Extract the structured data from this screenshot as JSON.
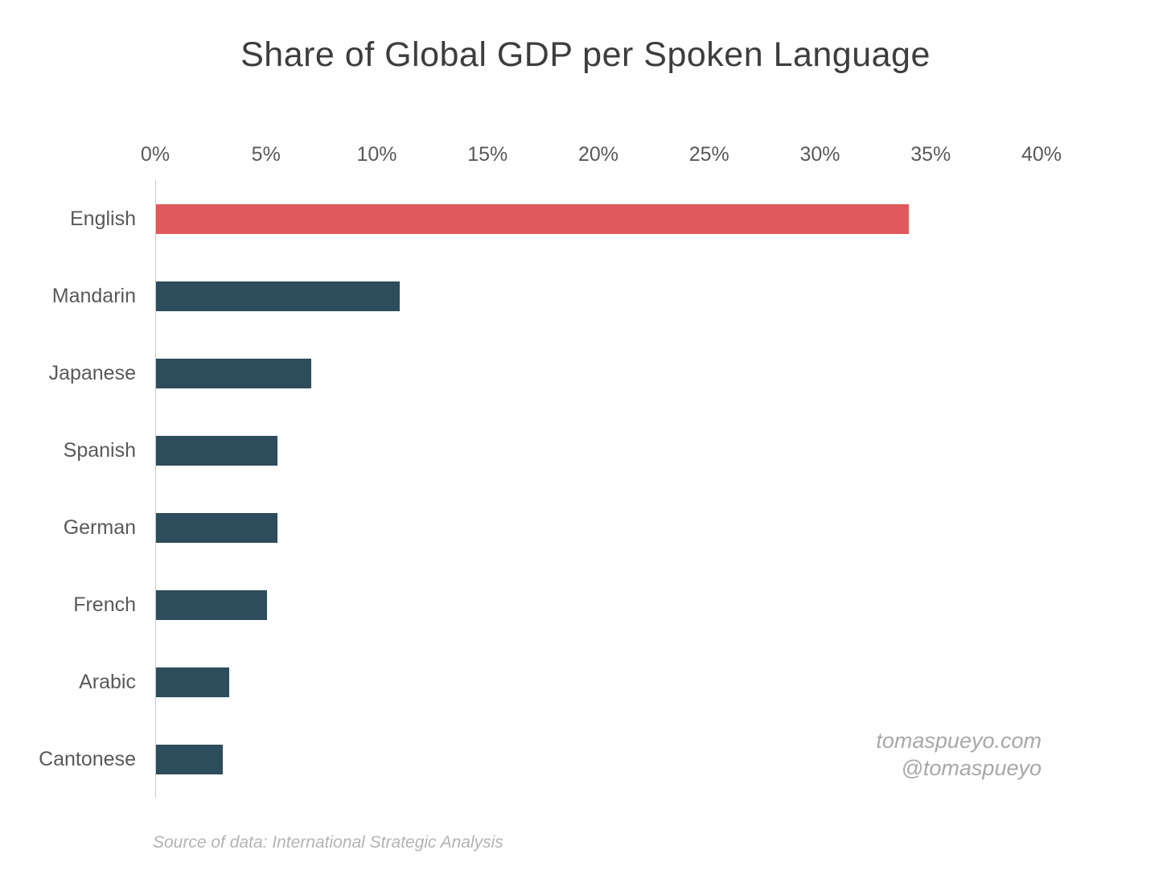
{
  "chart_data": {
    "type": "bar",
    "orientation": "horizontal",
    "title": "Share of Global GDP per Spoken Language",
    "categories": [
      "English",
      "Mandarin",
      "Japanese",
      "Spanish",
      "German",
      "French",
      "Arabic",
      "Cantonese"
    ],
    "values": [
      34,
      11,
      7,
      5.5,
      5.5,
      5,
      3.3,
      3
    ],
    "unit": "%",
    "xlim": [
      0,
      40
    ],
    "x_tick_values": [
      0,
      5,
      10,
      15,
      20,
      25,
      30,
      35,
      40
    ],
    "x_tick_labels": [
      "0%",
      "5%",
      "10%",
      "15%",
      "20%",
      "25%",
      "30%",
      "35%",
      "40%"
    ],
    "bar_colors": [
      "#e0595c",
      "#2e4d5c",
      "#2e4d5c",
      "#2e4d5c",
      "#2e4d5c",
      "#2e4d5c",
      "#2e4d5c",
      "#2e4d5c"
    ],
    "grid": false,
    "legend": null
  },
  "annotations": {
    "website": "tomaspueyo.com",
    "handle": "@tomaspueyo"
  },
  "source": "Source of data: International Strategic Analysis",
  "colors": {
    "highlight_bar": "#e0595c",
    "default_bar": "#2e4d5c",
    "axis_text": "#595959",
    "title_text": "#3d3d3d",
    "annotation_text": "#a8a8a8",
    "axis_line": "#c9c9c9"
  }
}
